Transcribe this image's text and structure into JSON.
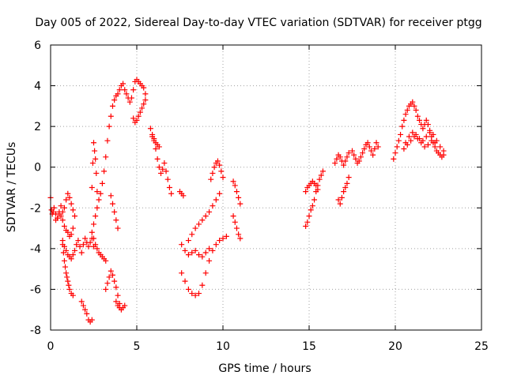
{
  "chart_data": {
    "type": "scatter",
    "title": "Day 005 of 2022, Sidereal Day-to-day VTEC variation (SDTVAR) for receiver ptgg",
    "xlabel": "GPS time / hours",
    "ylabel": "SDTVAR / TECUs",
    "xlim": [
      0,
      25
    ],
    "ylim": [
      -8,
      6
    ],
    "xticks": [
      "0",
      "5",
      "10",
      "15",
      "20",
      "25"
    ],
    "yticks": [
      "-8",
      "-6",
      "-4",
      "-2",
      "0",
      "2",
      "4",
      "6"
    ],
    "grid": true,
    "marker": "+",
    "color": "#ff0000",
    "series": [
      {
        "name": "SDTVAR",
        "x": [
          0.0,
          0.05,
          0.1,
          0.15,
          0.2,
          0.3,
          0.4,
          0.5,
          0.6,
          0.7,
          0.8,
          0.9,
          1.0,
          1.1,
          1.2,
          1.3,
          1.4,
          0.3,
          0.4,
          0.5,
          0.6,
          0.7,
          0.8,
          0.9,
          1.0,
          1.1,
          1.2,
          1.3,
          0.7,
          0.75,
          0.8,
          0.85,
          0.9,
          0.95,
          1.0,
          1.05,
          1.1,
          1.2,
          1.3,
          0.7,
          0.8,
          0.9,
          1.0,
          1.1,
          1.2,
          1.3,
          1.4,
          1.5,
          1.6,
          1.7,
          1.8,
          1.9,
          2.0,
          2.1,
          2.2,
          2.3,
          2.4,
          2.5,
          1.8,
          1.9,
          2.0,
          2.1,
          2.2,
          2.3,
          2.4,
          2.5,
          2.6,
          2.7,
          2.8,
          2.9,
          3.0,
          3.1,
          3.2,
          2.4,
          2.5,
          2.6,
          2.7,
          2.8,
          2.9,
          3.0,
          3.1,
          3.2,
          3.3,
          3.4,
          3.5,
          3.6,
          3.7,
          3.8,
          3.9,
          4.0,
          4.1,
          4.2,
          4.3,
          4.4,
          4.5,
          4.6,
          4.7,
          4.8,
          4.9,
          5.0,
          5.1,
          5.2,
          5.3,
          5.4,
          5.5,
          2.4,
          2.45,
          2.5,
          2.55,
          2.6,
          2.65,
          2.7,
          3.5,
          3.6,
          3.7,
          3.8,
          3.9,
          3.2,
          3.3,
          3.4,
          3.5,
          3.6,
          3.7,
          3.8,
          3.9,
          4.0,
          3.8,
          3.9,
          4.0,
          4.1,
          4.2,
          4.3,
          4.8,
          4.9,
          5.0,
          5.1,
          5.2,
          5.3,
          5.4,
          5.5,
          5.8,
          5.9,
          6.0,
          6.1,
          6.2,
          6.3,
          6.4,
          6.5,
          6.6,
          6.7,
          6.8,
          6.9,
          7.0,
          5.9,
          6.0,
          6.1,
          6.2,
          6.3,
          7.5,
          7.6,
          7.7,
          7.6,
          7.8,
          8.0,
          8.2,
          8.4,
          8.6,
          8.8,
          9.0,
          9.2,
          7.6,
          7.8,
          8.0,
          8.2,
          8.4,
          8.6,
          8.8,
          9.0,
          9.2,
          9.4,
          9.6,
          9.8,
          10.0,
          10.2,
          8.0,
          8.2,
          8.4,
          8.6,
          8.8,
          9.0,
          9.2,
          9.4,
          9.6,
          9.8,
          9.3,
          9.4,
          9.5,
          9.6,
          9.7,
          9.8,
          9.9,
          10.0,
          10.6,
          10.7,
          10.8,
          10.9,
          11.0,
          10.6,
          10.7,
          10.8,
          10.9,
          11.0,
          14.8,
          14.9,
          15.0,
          15.1,
          15.2,
          15.3,
          15.4,
          15.5,
          14.8,
          14.9,
          15.0,
          15.1,
          15.2,
          15.3,
          15.4,
          15.5,
          15.6,
          15.7,
          15.8,
          16.5,
          16.6,
          16.7,
          16.8,
          16.9,
          17.0,
          17.1,
          17.2,
          17.3,
          16.7,
          16.8,
          16.9,
          17.0,
          17.1,
          17.2,
          17.3,
          17.5,
          17.6,
          17.7,
          17.8,
          17.9,
          18.0,
          18.1,
          18.2,
          18.3,
          18.4,
          18.5,
          18.6,
          18.7,
          18.8,
          18.9,
          19.0,
          19.9,
          20.0,
          20.1,
          20.2,
          20.3,
          20.4,
          20.5,
          20.6,
          20.7,
          20.8,
          20.9,
          21.0,
          21.1,
          21.2,
          21.3,
          21.4,
          21.5,
          21.6,
          21.7,
          21.8,
          21.9,
          22.0,
          22.1,
          22.2,
          22.3,
          22.4,
          22.5,
          22.6,
          22.7,
          22.8,
          20.6,
          20.8,
          21.0,
          21.2,
          21.4,
          21.6,
          21.8,
          22.0,
          22.2,
          22.4,
          22.6,
          22.8,
          20.5,
          20.7,
          20.9,
          21.1,
          21.3,
          21.5,
          21.7,
          21.9,
          22.1,
          22.3
        ],
        "y": [
          -1.5,
          -2.1,
          -2.3,
          -2.2,
          -2.0,
          -2.3,
          -2.5,
          -2.2,
          -1.9,
          -2.2,
          -2.0,
          -1.6,
          -1.3,
          -1.5,
          -1.8,
          -2.1,
          -2.4,
          -2.6,
          -2.5,
          -2.3,
          -2.4,
          -2.6,
          -2.9,
          -3.1,
          -3.2,
          -3.4,
          -3.3,
          -3.0,
          -3.8,
          -4.2,
          -4.6,
          -4.9,
          -5.2,
          -5.4,
          -5.6,
          -5.8,
          -6.0,
          -6.2,
          -6.3,
          -3.6,
          -3.9,
          -4.1,
          -4.3,
          -4.4,
          -4.5,
          -4.3,
          -4.1,
          -3.8,
          -3.6,
          -3.9,
          -4.2,
          -3.8,
          -3.5,
          -3.7,
          -3.9,
          -3.7,
          -3.5,
          -3.9,
          -6.6,
          -6.8,
          -7.0,
          -7.2,
          -7.5,
          -7.6,
          -7.5,
          -3.5,
          -3.8,
          -4.0,
          -4.2,
          -4.3,
          -4.4,
          -4.5,
          -4.6,
          -3.2,
          -2.8,
          -2.4,
          -2.0,
          -1.6,
          -1.3,
          -0.8,
          -0.2,
          0.5,
          1.3,
          2.0,
          2.5,
          3.0,
          3.3,
          3.5,
          3.6,
          3.8,
          4.0,
          4.1,
          3.8,
          3.6,
          3.4,
          3.2,
          3.4,
          3.8,
          4.2,
          4.3,
          4.2,
          4.1,
          4.0,
          3.9,
          3.6,
          -1.0,
          0.2,
          1.2,
          0.8,
          0.4,
          -0.3,
          -1.2,
          -1.4,
          -1.8,
          -2.2,
          -2.6,
          -3.0,
          -6.0,
          -5.7,
          -5.4,
          -5.1,
          -5.3,
          -5.6,
          -5.9,
          -6.3,
          -6.7,
          -6.6,
          -6.8,
          -6.9,
          -7.0,
          -6.9,
          -6.8,
          2.4,
          2.2,
          2.3,
          2.5,
          2.7,
          2.9,
          3.1,
          3.3,
          1.9,
          1.6,
          1.3,
          0.9,
          0.4,
          0.0,
          -0.3,
          -0.1,
          0.2,
          -0.2,
          -0.6,
          -1.0,
          -1.3,
          1.5,
          1.4,
          1.2,
          1.1,
          1.0,
          -1.2,
          -1.3,
          -1.4,
          -3.8,
          -4.1,
          -4.3,
          -4.2,
          -4.1,
          -4.3,
          -4.4,
          -4.2,
          -4.0,
          -5.2,
          -5.6,
          -6.0,
          -6.2,
          -6.3,
          -6.2,
          -5.8,
          -5.2,
          -4.6,
          -4.1,
          -3.8,
          -3.6,
          -3.5,
          -3.4,
          -3.6,
          -3.3,
          -3.0,
          -2.8,
          -2.6,
          -2.4,
          -2.2,
          -1.9,
          -1.6,
          -1.3,
          -0.6,
          -0.3,
          0.0,
          0.2,
          0.3,
          0.1,
          -0.2,
          -0.5,
          -0.7,
          -0.9,
          -1.2,
          -1.5,
          -1.8,
          -2.4,
          -2.7,
          -3.0,
          -3.3,
          -3.5,
          -1.2,
          -1.0,
          -0.9,
          -0.8,
          -0.7,
          -0.8,
          -0.9,
          -1.1,
          -2.9,
          -2.7,
          -2.4,
          -2.1,
          -1.9,
          -1.6,
          -1.2,
          -0.9,
          -0.6,
          -0.4,
          -0.2,
          0.2,
          0.4,
          0.6,
          0.5,
          0.3,
          0.1,
          0.3,
          0.5,
          0.7,
          -1.6,
          -1.8,
          -1.5,
          -1.2,
          -1.0,
          -0.8,
          -0.5,
          0.8,
          0.6,
          0.4,
          0.2,
          0.3,
          0.5,
          0.7,
          0.9,
          1.1,
          1.2,
          1.0,
          0.8,
          0.6,
          0.9,
          1.2,
          1.0,
          0.4,
          0.7,
          1.0,
          1.3,
          1.6,
          2.0,
          2.3,
          2.6,
          2.8,
          3.0,
          3.1,
          3.2,
          3.0,
          2.8,
          2.5,
          2.3,
          2.1,
          1.9,
          2.1,
          2.3,
          2.1,
          1.8,
          1.5,
          1.2,
          1.0,
          0.8,
          0.7,
          0.6,
          0.5,
          0.6,
          1.2,
          1.5,
          1.7,
          1.6,
          1.4,
          1.3,
          1.5,
          1.7,
          1.6,
          1.3,
          1.0,
          0.8,
          0.9,
          1.1,
          1.3,
          1.5,
          1.4,
          1.2,
          1.0,
          1.1,
          1.3,
          1.2
        ]
      }
    ]
  }
}
